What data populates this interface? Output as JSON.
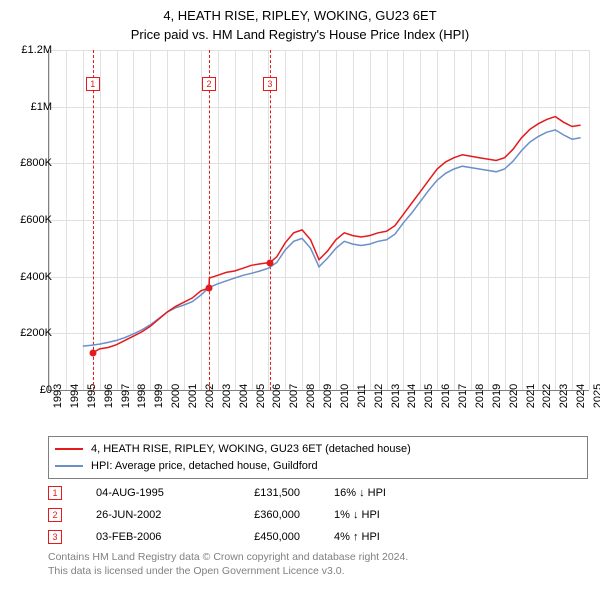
{
  "title_line1": "4, HEATH RISE, RIPLEY, WOKING, GU23 6ET",
  "title_line2": "Price paid vs. HM Land Registry's House Price Index (HPI)",
  "chart": {
    "type": "line",
    "background_color": "#ffffff",
    "grid_color": "#e0e0e0",
    "axis_color": "#808080",
    "y": {
      "min": 0,
      "max": 1200000,
      "ticks": [
        0,
        200000,
        400000,
        600000,
        800000,
        1000000,
        1200000
      ],
      "labels": [
        "£0",
        "£200K",
        "£400K",
        "£600K",
        "£800K",
        "£1M",
        "£1.2M"
      ],
      "label_fontsize": 11
    },
    "x": {
      "min": 1993,
      "max": 2025,
      "ticks": [
        1993,
        1994,
        1995,
        1996,
        1997,
        1998,
        1999,
        2000,
        2001,
        2002,
        2003,
        2004,
        2005,
        2006,
        2007,
        2008,
        2009,
        2010,
        2011,
        2012,
        2013,
        2014,
        2015,
        2016,
        2017,
        2018,
        2019,
        2020,
        2021,
        2022,
        2023,
        2024,
        2025
      ],
      "label_fontsize": 11,
      "label_rotation": -90
    },
    "series": [
      {
        "name": "4, HEATH RISE, RIPLEY, WOKING, GU23 6ET (detached house)",
        "color": "#e41a1c",
        "line_width": 1.5,
        "data": [
          [
            1995.6,
            131500
          ],
          [
            1996,
            145000
          ],
          [
            1996.5,
            150000
          ],
          [
            1997,
            160000
          ],
          [
            1997.5,
            175000
          ],
          [
            1998,
            190000
          ],
          [
            1998.5,
            205000
          ],
          [
            1999,
            225000
          ],
          [
            1999.5,
            250000
          ],
          [
            2000,
            275000
          ],
          [
            2000.5,
            295000
          ],
          [
            2001,
            310000
          ],
          [
            2001.5,
            325000
          ],
          [
            2002,
            350000
          ],
          [
            2002.48,
            360000
          ],
          [
            2002.5,
            395000
          ],
          [
            2003,
            405000
          ],
          [
            2003.5,
            415000
          ],
          [
            2004,
            420000
          ],
          [
            2004.5,
            430000
          ],
          [
            2005,
            440000
          ],
          [
            2005.5,
            445000
          ],
          [
            2006.09,
            450000
          ],
          [
            2006.5,
            470000
          ],
          [
            2007,
            520000
          ],
          [
            2007.5,
            555000
          ],
          [
            2008,
            565000
          ],
          [
            2008.5,
            530000
          ],
          [
            2009,
            460000
          ],
          [
            2009.5,
            490000
          ],
          [
            2010,
            530000
          ],
          [
            2010.5,
            555000
          ],
          [
            2011,
            545000
          ],
          [
            2011.5,
            540000
          ],
          [
            2012,
            545000
          ],
          [
            2012.5,
            555000
          ],
          [
            2013,
            560000
          ],
          [
            2013.5,
            580000
          ],
          [
            2014,
            620000
          ],
          [
            2014.5,
            660000
          ],
          [
            2015,
            700000
          ],
          [
            2015.5,
            740000
          ],
          [
            2016,
            780000
          ],
          [
            2016.5,
            805000
          ],
          [
            2017,
            820000
          ],
          [
            2017.5,
            830000
          ],
          [
            2018,
            825000
          ],
          [
            2018.5,
            820000
          ],
          [
            2019,
            815000
          ],
          [
            2019.5,
            810000
          ],
          [
            2020,
            820000
          ],
          [
            2020.5,
            850000
          ],
          [
            2021,
            890000
          ],
          [
            2021.5,
            920000
          ],
          [
            2022,
            940000
          ],
          [
            2022.5,
            955000
          ],
          [
            2023,
            965000
          ],
          [
            2023.5,
            945000
          ],
          [
            2024,
            930000
          ],
          [
            2024.5,
            935000
          ]
        ]
      },
      {
        "name": "HPI: Average price, detached house, Guildford",
        "color": "#6b8fc9",
        "line_width": 1.5,
        "data": [
          [
            1995,
            155000
          ],
          [
            1995.5,
            158000
          ],
          [
            1996,
            162000
          ],
          [
            1996.5,
            168000
          ],
          [
            1997,
            175000
          ],
          [
            1997.5,
            185000
          ],
          [
            1998,
            198000
          ],
          [
            1998.5,
            212000
          ],
          [
            1999,
            230000
          ],
          [
            1999.5,
            252000
          ],
          [
            2000,
            275000
          ],
          [
            2000.5,
            290000
          ],
          [
            2001,
            300000
          ],
          [
            2001.5,
            312000
          ],
          [
            2002,
            335000
          ],
          [
            2002.5,
            362000
          ],
          [
            2003,
            375000
          ],
          [
            2003.5,
            385000
          ],
          [
            2004,
            395000
          ],
          [
            2004.5,
            405000
          ],
          [
            2005,
            412000
          ],
          [
            2005.5,
            420000
          ],
          [
            2006,
            430000
          ],
          [
            2006.5,
            450000
          ],
          [
            2007,
            495000
          ],
          [
            2007.5,
            525000
          ],
          [
            2008,
            535000
          ],
          [
            2008.5,
            500000
          ],
          [
            2009,
            435000
          ],
          [
            2009.5,
            465000
          ],
          [
            2010,
            500000
          ],
          [
            2010.5,
            525000
          ],
          [
            2011,
            515000
          ],
          [
            2011.5,
            510000
          ],
          [
            2012,
            515000
          ],
          [
            2012.5,
            525000
          ],
          [
            2013,
            530000
          ],
          [
            2013.5,
            550000
          ],
          [
            2014,
            590000
          ],
          [
            2014.5,
            625000
          ],
          [
            2015,
            665000
          ],
          [
            2015.5,
            705000
          ],
          [
            2016,
            740000
          ],
          [
            2016.5,
            765000
          ],
          [
            2017,
            780000
          ],
          [
            2017.5,
            790000
          ],
          [
            2018,
            785000
          ],
          [
            2018.5,
            780000
          ],
          [
            2019,
            775000
          ],
          [
            2019.5,
            770000
          ],
          [
            2020,
            780000
          ],
          [
            2020.5,
            808000
          ],
          [
            2021,
            845000
          ],
          [
            2021.5,
            875000
          ],
          [
            2022,
            895000
          ],
          [
            2022.5,
            910000
          ],
          [
            2023,
            918000
          ],
          [
            2023.5,
            900000
          ],
          [
            2024,
            885000
          ],
          [
            2024.5,
            890000
          ]
        ]
      }
    ],
    "sale_markers": [
      {
        "n": "1",
        "year": 1995.59,
        "price": 131500
      },
      {
        "n": "2",
        "year": 2002.48,
        "price": 360000
      },
      {
        "n": "3",
        "year": 2006.09,
        "price": 450000
      }
    ]
  },
  "legend": {
    "items": [
      {
        "color": "#e41a1c",
        "label": "4, HEATH RISE, RIPLEY, WOKING, GU23 6ET (detached house)"
      },
      {
        "color": "#6b8fc9",
        "label": "HPI: Average price, detached house, Guildford"
      }
    ]
  },
  "sales": [
    {
      "n": "1",
      "date": "04-AUG-1995",
      "price": "£131,500",
      "diff": "16% ↓ HPI"
    },
    {
      "n": "2",
      "date": "26-JUN-2002",
      "price": "£360,000",
      "diff": "1% ↓ HPI"
    },
    {
      "n": "3",
      "date": "03-FEB-2006",
      "price": "£450,000",
      "diff": "4% ↑ HPI"
    }
  ],
  "footer_line1": "Contains HM Land Registry data © Crown copyright and database right 2024.",
  "footer_line2": "This data is licensed under the Open Government Licence v3.0."
}
